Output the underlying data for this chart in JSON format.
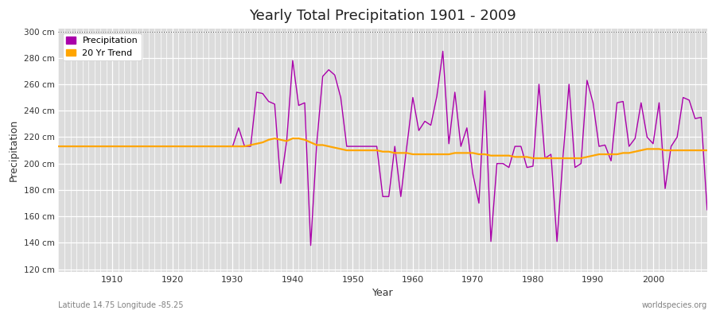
{
  "title": "Yearly Total Precipitation 1901 - 2009",
  "xlabel": "Year",
  "ylabel": "Precipitation",
  "subtitle_left": "Latitude 14.75 Longitude -85.25",
  "subtitle_right": "worldspecies.org",
  "ylim": [
    118,
    302
  ],
  "yticks": [
    120,
    140,
    160,
    180,
    200,
    220,
    240,
    260,
    280,
    300
  ],
  "ytick_labels": [
    "120 cm",
    "140 cm",
    "160 cm",
    "180 cm",
    "200 cm",
    "220 cm",
    "240 cm",
    "260 cm",
    "280 cm",
    "300 cm"
  ],
  "xlim": [
    1901,
    2009
  ],
  "xticks": [
    1910,
    1920,
    1930,
    1940,
    1950,
    1960,
    1970,
    1980,
    1990,
    2000
  ],
  "fig_bg_color": "#ffffff",
  "plot_bg_color": "#dcdcdc",
  "precip_color": "#aa00aa",
  "trend_color": "#FFA500",
  "legend_precip": "Precipitation",
  "legend_trend": "20 Yr Trend",
  "years": [
    1901,
    1902,
    1903,
    1904,
    1905,
    1906,
    1907,
    1908,
    1909,
    1910,
    1911,
    1912,
    1913,
    1914,
    1915,
    1916,
    1917,
    1918,
    1919,
    1920,
    1921,
    1922,
    1923,
    1924,
    1925,
    1926,
    1927,
    1928,
    1929,
    1930,
    1931,
    1932,
    1933,
    1934,
    1935,
    1936,
    1937,
    1938,
    1939,
    1940,
    1941,
    1942,
    1943,
    1944,
    1945,
    1946,
    1947,
    1948,
    1949,
    1950,
    1951,
    1952,
    1953,
    1954,
    1955,
    1956,
    1957,
    1958,
    1959,
    1960,
    1961,
    1962,
    1963,
    1964,
    1965,
    1966,
    1967,
    1968,
    1969,
    1970,
    1971,
    1972,
    1973,
    1974,
    1975,
    1976,
    1977,
    1978,
    1979,
    1980,
    1981,
    1982,
    1983,
    1984,
    1985,
    1986,
    1987,
    1988,
    1989,
    1990,
    1991,
    1992,
    1993,
    1994,
    1995,
    1996,
    1997,
    1998,
    1999,
    2000,
    2001,
    2002,
    2003,
    2004,
    2005,
    2006,
    2007,
    2008,
    2009
  ],
  "precip": [
    213,
    213,
    213,
    213,
    213,
    213,
    213,
    213,
    213,
    213,
    213,
    213,
    213,
    213,
    213,
    213,
    213,
    213,
    213,
    213,
    213,
    213,
    213,
    213,
    213,
    213,
    213,
    213,
    213,
    213,
    227,
    213,
    213,
    254,
    253,
    247,
    245,
    185,
    217,
    278,
    244,
    246,
    138,
    215,
    266,
    271,
    267,
    250,
    213,
    213,
    213,
    213,
    213,
    213,
    175,
    175,
    213,
    175,
    213,
    250,
    225,
    232,
    229,
    251,
    285,
    215,
    254,
    213,
    227,
    192,
    170,
    255,
    141,
    200,
    200,
    197,
    213,
    213,
    197,
    198,
    260,
    204,
    207,
    141,
    205,
    260,
    197,
    200,
    263,
    246,
    213,
    214,
    202,
    246,
    247,
    213,
    219,
    246,
    220,
    215,
    246,
    181,
    213,
    220,
    250,
    248,
    234,
    235,
    165
  ],
  "trend": [
    213,
    213,
    213,
    213,
    213,
    213,
    213,
    213,
    213,
    213,
    213,
    213,
    213,
    213,
    213,
    213,
    213,
    213,
    213,
    213,
    213,
    213,
    213,
    213,
    213,
    213,
    213,
    213,
    213,
    213,
    213,
    213,
    214,
    215,
    216,
    218,
    219,
    218,
    217,
    219,
    219,
    218,
    216,
    214,
    214,
    213,
    212,
    211,
    210,
    210,
    210,
    210,
    210,
    210,
    209,
    209,
    208,
    208,
    208,
    207,
    207,
    207,
    207,
    207,
    207,
    207,
    208,
    208,
    208,
    208,
    207,
    207,
    206,
    206,
    206,
    206,
    205,
    205,
    205,
    204,
    204,
    204,
    204,
    204,
    204,
    204,
    204,
    204,
    205,
    206,
    207,
    207,
    207,
    207,
    208,
    208,
    209,
    210,
    211,
    211,
    211,
    210,
    210,
    210,
    210,
    210,
    210,
    210,
    210
  ]
}
